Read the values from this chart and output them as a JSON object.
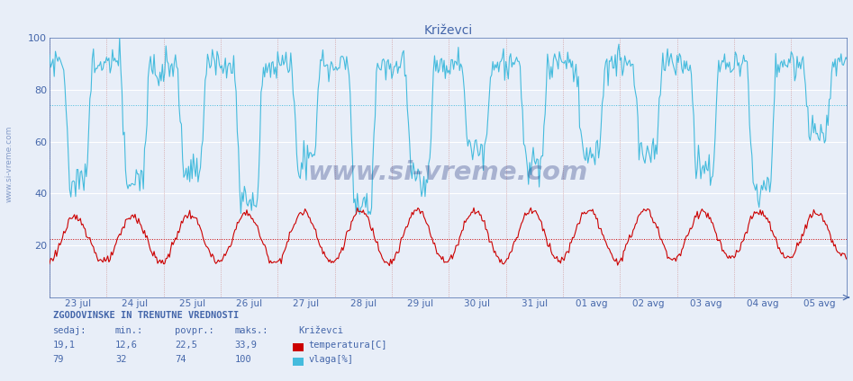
{
  "title": "Križevci",
  "bg_color": "#e8eef8",
  "plot_bg_color": "#e8eef8",
  "grid_color_h": "#ffffff",
  "grid_color_v_dotted": "#ee9999",
  "temp_color": "#cc0000",
  "humid_color": "#44bbdd",
  "temp_avg": 22.5,
  "humid_avg": 74,
  "temp_min": 12.6,
  "temp_max": 33.9,
  "temp_sedaj": "19,1",
  "temp_povpr": "22,5",
  "temp_min_str": "12,6",
  "temp_max_str": "33,9",
  "humid_min": 32,
  "humid_max": 100,
  "humid_sedaj": "79",
  "humid_povpr": "74",
  "humid_min_str": "32",
  "humid_max_str": "100",
  "ymin": 0,
  "ymax": 100,
  "yticks": [
    20,
    40,
    60,
    80,
    100
  ],
  "label_color": "#4466aa",
  "title_color": "#4466aa",
  "watermark": "www.si-vreme.com",
  "watermark_color": "#aabbdd",
  "footer_label": "ZGODOVINSKE IN TRENUTNE VREDNOSTI",
  "x_labels": [
    "23 jul",
    "24 jul",
    "25 jul",
    "26 jul",
    "27 jul",
    "28 jul",
    "29 jul",
    "30 jul",
    "31 jul",
    "01 avg",
    "02 avg",
    "03 avg",
    "04 avg",
    "05 avg"
  ],
  "n_days": 14,
  "pts_per_day": 48,
  "side_label": "www.si-vreme.com"
}
